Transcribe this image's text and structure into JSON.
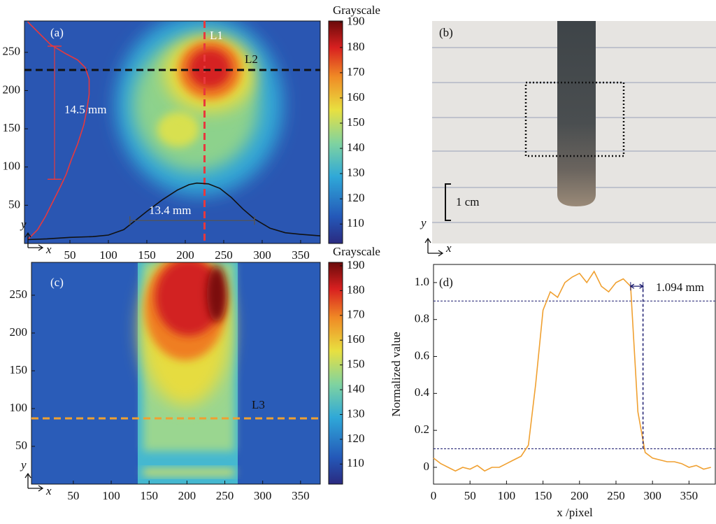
{
  "chart_data": [
    {
      "type": "heatmap",
      "label": "(a)",
      "x_label": "x",
      "y_label": "y",
      "xlim": [
        -9.1,
        375.5
      ],
      "ylim": [
        0,
        291
      ],
      "xticks": [
        50,
        100,
        150,
        200,
        250,
        300,
        350
      ],
      "yticks": [
        50,
        100,
        150,
        200,
        250
      ],
      "colorbar": {
        "title": "Grayscale",
        "lim": [
          102.3,
          190.5
        ],
        "ticks": [
          110,
          120,
          130,
          140,
          150,
          160,
          170,
          180,
          190
        ]
      },
      "lines": [
        {
          "name": "L1",
          "orientation": "vertical",
          "value": 225,
          "color": "#e8383d"
        },
        {
          "name": "L2",
          "orientation": "horizontal",
          "value": 227,
          "color": "#111111"
        }
      ],
      "profiles": [
        {
          "color": "#e8383d",
          "x": [
            -5,
            10,
            25,
            45,
            60,
            70,
            75,
            75,
            72,
            68,
            60,
            52,
            45,
            38,
            28,
            18,
            8,
            -5
          ],
          "values": [
            290,
            275,
            260,
            248,
            240,
            230,
            215,
            195,
            175,
            155,
            130,
            110,
            90,
            75,
            55,
            35,
            18,
            5
          ]
        },
        {
          "color": "#111111",
          "x": [
            -5,
            20,
            50,
            80,
            100,
            120,
            135,
            150,
            170,
            190,
            205,
            215,
            230,
            245,
            260,
            275,
            290,
            310,
            330,
            350,
            375
          ],
          "values": [
            5,
            6,
            8,
            9,
            11,
            18,
            30,
            42,
            57,
            70,
            77,
            79,
            78,
            72,
            60,
            45,
            32,
            20,
            14,
            12,
            10
          ]
        }
      ],
      "measurements": [
        {
          "label": "14.5 mm",
          "orientation": "vertical",
          "at": 30,
          "from": 84,
          "to": 258,
          "color": "#e8383d"
        },
        {
          "label": "13.4 mm",
          "orientation": "horizontal",
          "at": 30,
          "from": 128,
          "to": 290,
          "color": "#555555"
        }
      ]
    },
    {
      "type": "heatmap",
      "label": "(c)",
      "x_label": "x",
      "y_label": "y",
      "xlim": [
        -5.3,
        376
      ],
      "ylim": [
        0,
        293.5
      ],
      "xticks": [
        50,
        100,
        150,
        200,
        250,
        300,
        350
      ],
      "yticks": [
        50,
        100,
        150,
        200,
        250
      ],
      "colorbar": {
        "title": "Grayscale",
        "lim": [
          101.9,
          191.4
        ],
        "ticks": [
          110,
          120,
          130,
          140,
          150,
          160,
          170,
          180,
          190
        ]
      },
      "lines": [
        {
          "name": "L3",
          "orientation": "horizontal",
          "value": 87,
          "color": "#f0a030"
        }
      ]
    },
    {
      "type": "line",
      "label": "(d)",
      "x_label": "x /pixel",
      "y_label": "Normalized value",
      "xlim": [
        0,
        387
      ],
      "ylim": [
        -0.091,
        1.098
      ],
      "xticks": [
        0,
        50,
        100,
        150,
        200,
        250,
        300,
        350
      ],
      "yticks": [
        0,
        0.2,
        0.4,
        0.6,
        0.8,
        {
          "value": 1,
          "label": "1.0"
        }
      ],
      "color": "#f0a030",
      "x": [
        0,
        10,
        20,
        30,
        40,
        50,
        60,
        70,
        80,
        90,
        100,
        110,
        120,
        130,
        140,
        150,
        160,
        170,
        180,
        190,
        200,
        210,
        220,
        230,
        240,
        250,
        260,
        270,
        280,
        290,
        300,
        310,
        320,
        330,
        340,
        350,
        360,
        370,
        380
      ],
      "values": [
        0.05,
        0.02,
        0.0,
        -0.02,
        0.0,
        -0.01,
        0.01,
        -0.02,
        0.0,
        0.0,
        0.02,
        0.04,
        0.06,
        0.12,
        0.45,
        0.85,
        0.95,
        0.92,
        1.0,
        1.03,
        1.05,
        1.0,
        1.06,
        0.98,
        0.95,
        1.0,
        1.02,
        0.98,
        0.3,
        0.08,
        0.05,
        0.04,
        0.03,
        0.03,
        0.02,
        0.0,
        0.01,
        -0.01,
        0.0
      ],
      "hlines": {
        "color": "#1a1a6e",
        "values": [
          0.9,
          0.1
        ]
      },
      "measurement": {
        "label": "1.094 mm",
        "from": 270,
        "to": 287,
        "at": 0.98
      }
    }
  ],
  "photo": {
    "label": "(b)",
    "scale_label": "1 cm",
    "x_label": "x",
    "y_label": "y"
  }
}
